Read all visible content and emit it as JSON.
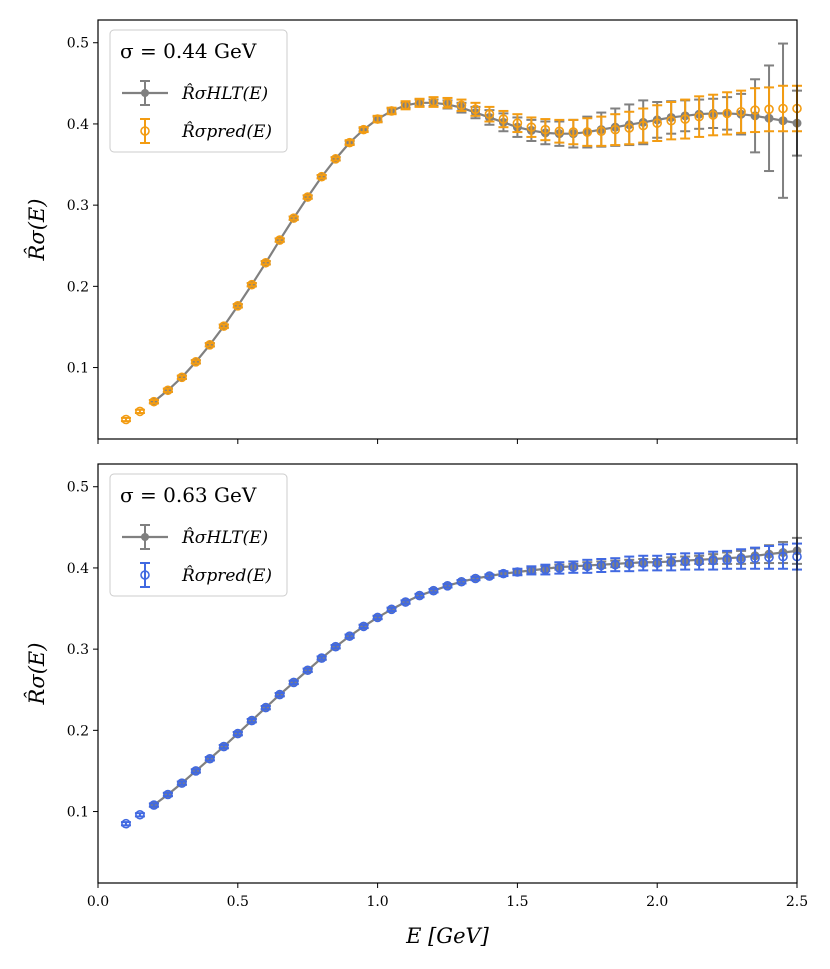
{
  "chart_data": [
    {
      "type": "line",
      "ylabel": "R̂σ(E)",
      "xlim": [
        0.0,
        2.5
      ],
      "ylim": [
        0.012,
        0.528
      ],
      "yticks": [
        "0.1",
        "0.2",
        "0.3",
        "0.4",
        "0.5"
      ],
      "xticks": [
        "0.0",
        "0.5",
        "1.0",
        "1.5",
        "2.0",
        "2.5"
      ],
      "legend": {
        "placement": "top-left",
        "title": "σ = 0.44 GeV",
        "entries": [
          "R̂σHLT(E)",
          "R̂σpred(E)"
        ]
      },
      "series": [
        {
          "name": "R̂σHLT(E)",
          "style": "line-filled-markers",
          "color": "#808080",
          "x": [
            0.2,
            0.25,
            0.3,
            0.35,
            0.4,
            0.45,
            0.5,
            0.55,
            0.6,
            0.65,
            0.7,
            0.75,
            0.8,
            0.85,
            0.9,
            0.95,
            1.0,
            1.05,
            1.1,
            1.15,
            1.2,
            1.25,
            1.3,
            1.35,
            1.4,
            1.45,
            1.5,
            1.55,
            1.6,
            1.65,
            1.7,
            1.75,
            1.8,
            1.85,
            1.9,
            1.95,
            2.0,
            2.05,
            2.1,
            2.15,
            2.2,
            2.25,
            2.3,
            2.35,
            2.4,
            2.45,
            2.5
          ],
          "y": [
            0.058,
            0.072,
            0.088,
            0.107,
            0.128,
            0.151,
            0.176,
            0.202,
            0.229,
            0.257,
            0.284,
            0.31,
            0.335,
            0.357,
            0.377,
            0.393,
            0.406,
            0.416,
            0.423,
            0.426,
            0.426,
            0.424,
            0.42,
            0.414,
            0.408,
            0.402,
            0.396,
            0.392,
            0.389,
            0.388,
            0.388,
            0.39,
            0.393,
            0.396,
            0.399,
            0.402,
            0.405,
            0.408,
            0.41,
            0.412,
            0.413,
            0.413,
            0.412,
            0.41,
            0.407,
            0.404,
            0.401
          ],
          "err": [
            0.002,
            0.002,
            0.002,
            0.002,
            0.002,
            0.002,
            0.002,
            0.002,
            0.002,
            0.002,
            0.002,
            0.002,
            0.002,
            0.002,
            0.002,
            0.002,
            0.003,
            0.003,
            0.003,
            0.004,
            0.004,
            0.005,
            0.006,
            0.007,
            0.009,
            0.011,
            0.012,
            0.013,
            0.014,
            0.015,
            0.017,
            0.019,
            0.021,
            0.023,
            0.025,
            0.027,
            0.022,
            0.02,
            0.019,
            0.018,
            0.018,
            0.02,
            0.025,
            0.045,
            0.065,
            0.095,
            0.04
          ]
        },
        {
          "name": "R̂σpred(E)",
          "style": "open-markers",
          "color": "#f39c12",
          "x": [
            0.1,
            0.15,
            0.2,
            0.25,
            0.3,
            0.35,
            0.4,
            0.45,
            0.5,
            0.55,
            0.6,
            0.65,
            0.7,
            0.75,
            0.8,
            0.85,
            0.9,
            0.95,
            1.0,
            1.05,
            1.1,
            1.15,
            1.2,
            1.25,
            1.3,
            1.35,
            1.4,
            1.45,
            1.5,
            1.55,
            1.6,
            1.65,
            1.7,
            1.75,
            1.8,
            1.85,
            1.9,
            1.95,
            2.0,
            2.05,
            2.1,
            2.15,
            2.2,
            2.25,
            2.3,
            2.35,
            2.4,
            2.45,
            2.5
          ],
          "y": [
            0.036,
            0.046,
            0.058,
            0.072,
            0.088,
            0.107,
            0.128,
            0.151,
            0.176,
            0.202,
            0.229,
            0.257,
            0.284,
            0.31,
            0.335,
            0.357,
            0.377,
            0.393,
            0.406,
            0.416,
            0.423,
            0.426,
            0.427,
            0.426,
            0.423,
            0.418,
            0.412,
            0.406,
            0.401,
            0.396,
            0.393,
            0.391,
            0.39,
            0.39,
            0.391,
            0.393,
            0.395,
            0.398,
            0.401,
            0.404,
            0.406,
            0.409,
            0.411,
            0.413,
            0.415,
            0.417,
            0.418,
            0.419,
            0.419
          ],
          "err": [
            0.002,
            0.002,
            0.002,
            0.002,
            0.002,
            0.002,
            0.002,
            0.002,
            0.002,
            0.002,
            0.002,
            0.002,
            0.002,
            0.002,
            0.002,
            0.002,
            0.003,
            0.003,
            0.004,
            0.004,
            0.005,
            0.005,
            0.006,
            0.006,
            0.007,
            0.008,
            0.009,
            0.01,
            0.011,
            0.012,
            0.013,
            0.014,
            0.015,
            0.017,
            0.018,
            0.019,
            0.02,
            0.021,
            0.022,
            0.023,
            0.024,
            0.025,
            0.025,
            0.026,
            0.026,
            0.027,
            0.027,
            0.028,
            0.028
          ]
        }
      ]
    },
    {
      "type": "line",
      "ylabel": "R̂σ(E)",
      "xlabel": "E [GeV]",
      "xlim": [
        0.0,
        2.5
      ],
      "ylim": [
        0.012,
        0.528
      ],
      "yticks": [
        "0.1",
        "0.2",
        "0.3",
        "0.4",
        "0.5"
      ],
      "xticks": [
        "0.0",
        "0.5",
        "1.0",
        "1.5",
        "2.0",
        "2.5"
      ],
      "legend": {
        "placement": "top-left",
        "title": "σ = 0.63 GeV",
        "entries": [
          "R̂σHLT(E)",
          "R̂σpred(E)"
        ]
      },
      "series": [
        {
          "name": "R̂σHLT(E)",
          "style": "line-filled-markers",
          "color": "#808080",
          "x": [
            0.2,
            0.25,
            0.3,
            0.35,
            0.4,
            0.45,
            0.5,
            0.55,
            0.6,
            0.65,
            0.7,
            0.75,
            0.8,
            0.85,
            0.9,
            0.95,
            1.0,
            1.05,
            1.1,
            1.15,
            1.2,
            1.25,
            1.3,
            1.35,
            1.4,
            1.45,
            1.5,
            1.55,
            1.6,
            1.65,
            1.7,
            1.75,
            1.8,
            1.85,
            1.9,
            1.95,
            2.0,
            2.05,
            2.1,
            2.15,
            2.2,
            2.25,
            2.3,
            2.35,
            2.4,
            2.45,
            2.5
          ],
          "y": [
            0.108,
            0.121,
            0.135,
            0.15,
            0.165,
            0.18,
            0.196,
            0.212,
            0.228,
            0.244,
            0.259,
            0.274,
            0.289,
            0.303,
            0.316,
            0.328,
            0.339,
            0.349,
            0.358,
            0.366,
            0.372,
            0.378,
            0.383,
            0.387,
            0.39,
            0.393,
            0.395,
            0.397,
            0.399,
            0.401,
            0.402,
            0.403,
            0.404,
            0.405,
            0.406,
            0.407,
            0.407,
            0.408,
            0.409,
            0.41,
            0.411,
            0.412,
            0.413,
            0.415,
            0.417,
            0.419,
            0.421
          ],
          "err": [
            0.002,
            0.002,
            0.002,
            0.002,
            0.002,
            0.002,
            0.002,
            0.002,
            0.002,
            0.002,
            0.002,
            0.002,
            0.002,
            0.002,
            0.002,
            0.002,
            0.002,
            0.002,
            0.002,
            0.002,
            0.002,
            0.002,
            0.002,
            0.002,
            0.002,
            0.002,
            0.003,
            0.003,
            0.003,
            0.003,
            0.003,
            0.004,
            0.004,
            0.004,
            0.004,
            0.004,
            0.004,
            0.005,
            0.005,
            0.005,
            0.006,
            0.007,
            0.008,
            0.009,
            0.011,
            0.013,
            0.016
          ]
        },
        {
          "name": "R̂σpred(E)",
          "style": "open-markers",
          "color": "#4169e1",
          "x": [
            0.1,
            0.15,
            0.2,
            0.25,
            0.3,
            0.35,
            0.4,
            0.45,
            0.5,
            0.55,
            0.6,
            0.65,
            0.7,
            0.75,
            0.8,
            0.85,
            0.9,
            0.95,
            1.0,
            1.05,
            1.1,
            1.15,
            1.2,
            1.25,
            1.3,
            1.35,
            1.4,
            1.45,
            1.5,
            1.55,
            1.6,
            1.65,
            1.7,
            1.75,
            1.8,
            1.85,
            1.9,
            1.95,
            2.0,
            2.05,
            2.1,
            2.15,
            2.2,
            2.25,
            2.3,
            2.35,
            2.4,
            2.45,
            2.5
          ],
          "y": [
            0.085,
            0.096,
            0.108,
            0.121,
            0.135,
            0.15,
            0.165,
            0.18,
            0.196,
            0.212,
            0.228,
            0.244,
            0.259,
            0.274,
            0.289,
            0.303,
            0.316,
            0.328,
            0.339,
            0.349,
            0.358,
            0.366,
            0.372,
            0.378,
            0.383,
            0.387,
            0.39,
            0.393,
            0.395,
            0.397,
            0.398,
            0.4,
            0.401,
            0.402,
            0.403,
            0.404,
            0.405,
            0.406,
            0.406,
            0.407,
            0.408,
            0.408,
            0.409,
            0.41,
            0.411,
            0.412,
            0.413,
            0.414,
            0.414
          ],
          "err": [
            0.002,
            0.002,
            0.002,
            0.002,
            0.002,
            0.002,
            0.002,
            0.002,
            0.002,
            0.002,
            0.002,
            0.002,
            0.002,
            0.002,
            0.002,
            0.002,
            0.002,
            0.002,
            0.002,
            0.002,
            0.002,
            0.002,
            0.002,
            0.002,
            0.002,
            0.002,
            0.002,
            0.003,
            0.004,
            0.005,
            0.006,
            0.007,
            0.007,
            0.008,
            0.008,
            0.008,
            0.009,
            0.009,
            0.009,
            0.01,
            0.01,
            0.01,
            0.011,
            0.011,
            0.012,
            0.013,
            0.014,
            0.015,
            0.016
          ]
        }
      ]
    }
  ]
}
